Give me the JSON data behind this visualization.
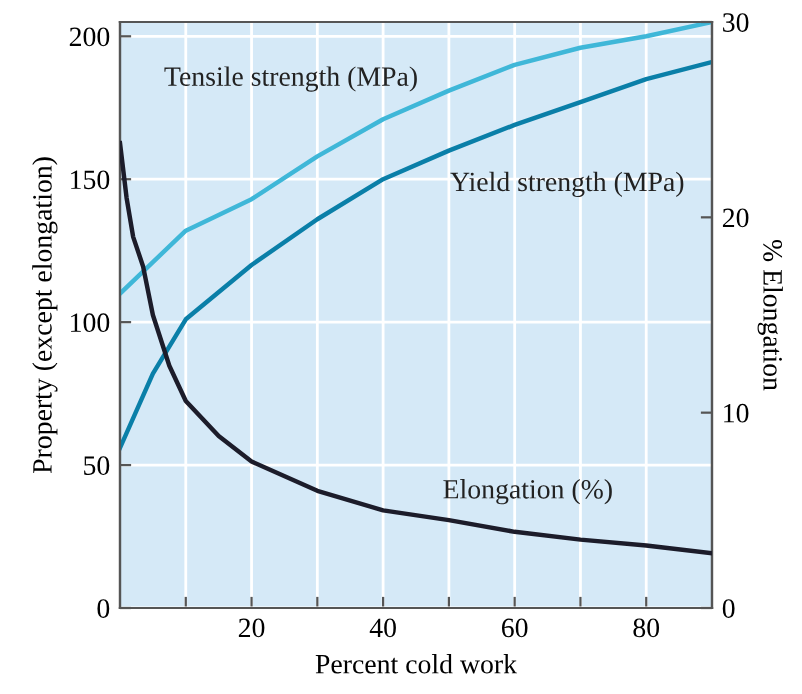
{
  "chart_data": {
    "type": "line",
    "xlabel": "Percent cold work",
    "ylabel": "Property (except elongation)",
    "y2label": "% Elongation",
    "xlim": [
      0,
      90
    ],
    "xticks": [
      {
        "value": 10,
        "label": null
      },
      20,
      {
        "value": 30,
        "label": null
      },
      40,
      {
        "value": 50,
        "label": null
      },
      60,
      {
        "value": 70,
        "label": null
      },
      80
    ],
    "ylim": [
      0,
      205
    ],
    "yticks": [
      0,
      50,
      100,
      150,
      200
    ],
    "y2lim": [
      0,
      30
    ],
    "y2ticks": [
      0,
      10,
      20,
      30
    ],
    "grid": true,
    "marker": "none",
    "line_style": "solid",
    "series": [
      {
        "name": "Tensile strength (MPa)",
        "color": "#3fb7d8",
        "x": [
          0,
          5,
          10,
          20,
          30,
          40,
          50,
          60,
          70,
          80,
          90
        ],
        "values": [
          110,
          121,
          132,
          143,
          158,
          171,
          181,
          190,
          196,
          200,
          205
        ]
      },
      {
        "name": "Yield strength (MPa)",
        "color": "#0a7fa8",
        "x": [
          0,
          5,
          10,
          20,
          30,
          40,
          50,
          60,
          70,
          80,
          90
        ],
        "values": [
          56,
          82,
          101,
          120,
          136,
          150,
          160,
          169,
          177,
          185,
          191
        ]
      },
      {
        "name": "Elongation (%)",
        "color": "#1c1c2a",
        "axis": "y2",
        "x": [
          0,
          1,
          2,
          3.5,
          5,
          7.5,
          10,
          15,
          20,
          30,
          40,
          50,
          60,
          70,
          80,
          90
        ],
        "values": [
          23.8,
          21,
          19,
          17.5,
          15,
          12.4,
          10.6,
          8.8,
          7.5,
          6,
          5,
          4.5,
          3.9,
          3.5,
          3.2,
          2.8
        ]
      }
    ]
  }
}
